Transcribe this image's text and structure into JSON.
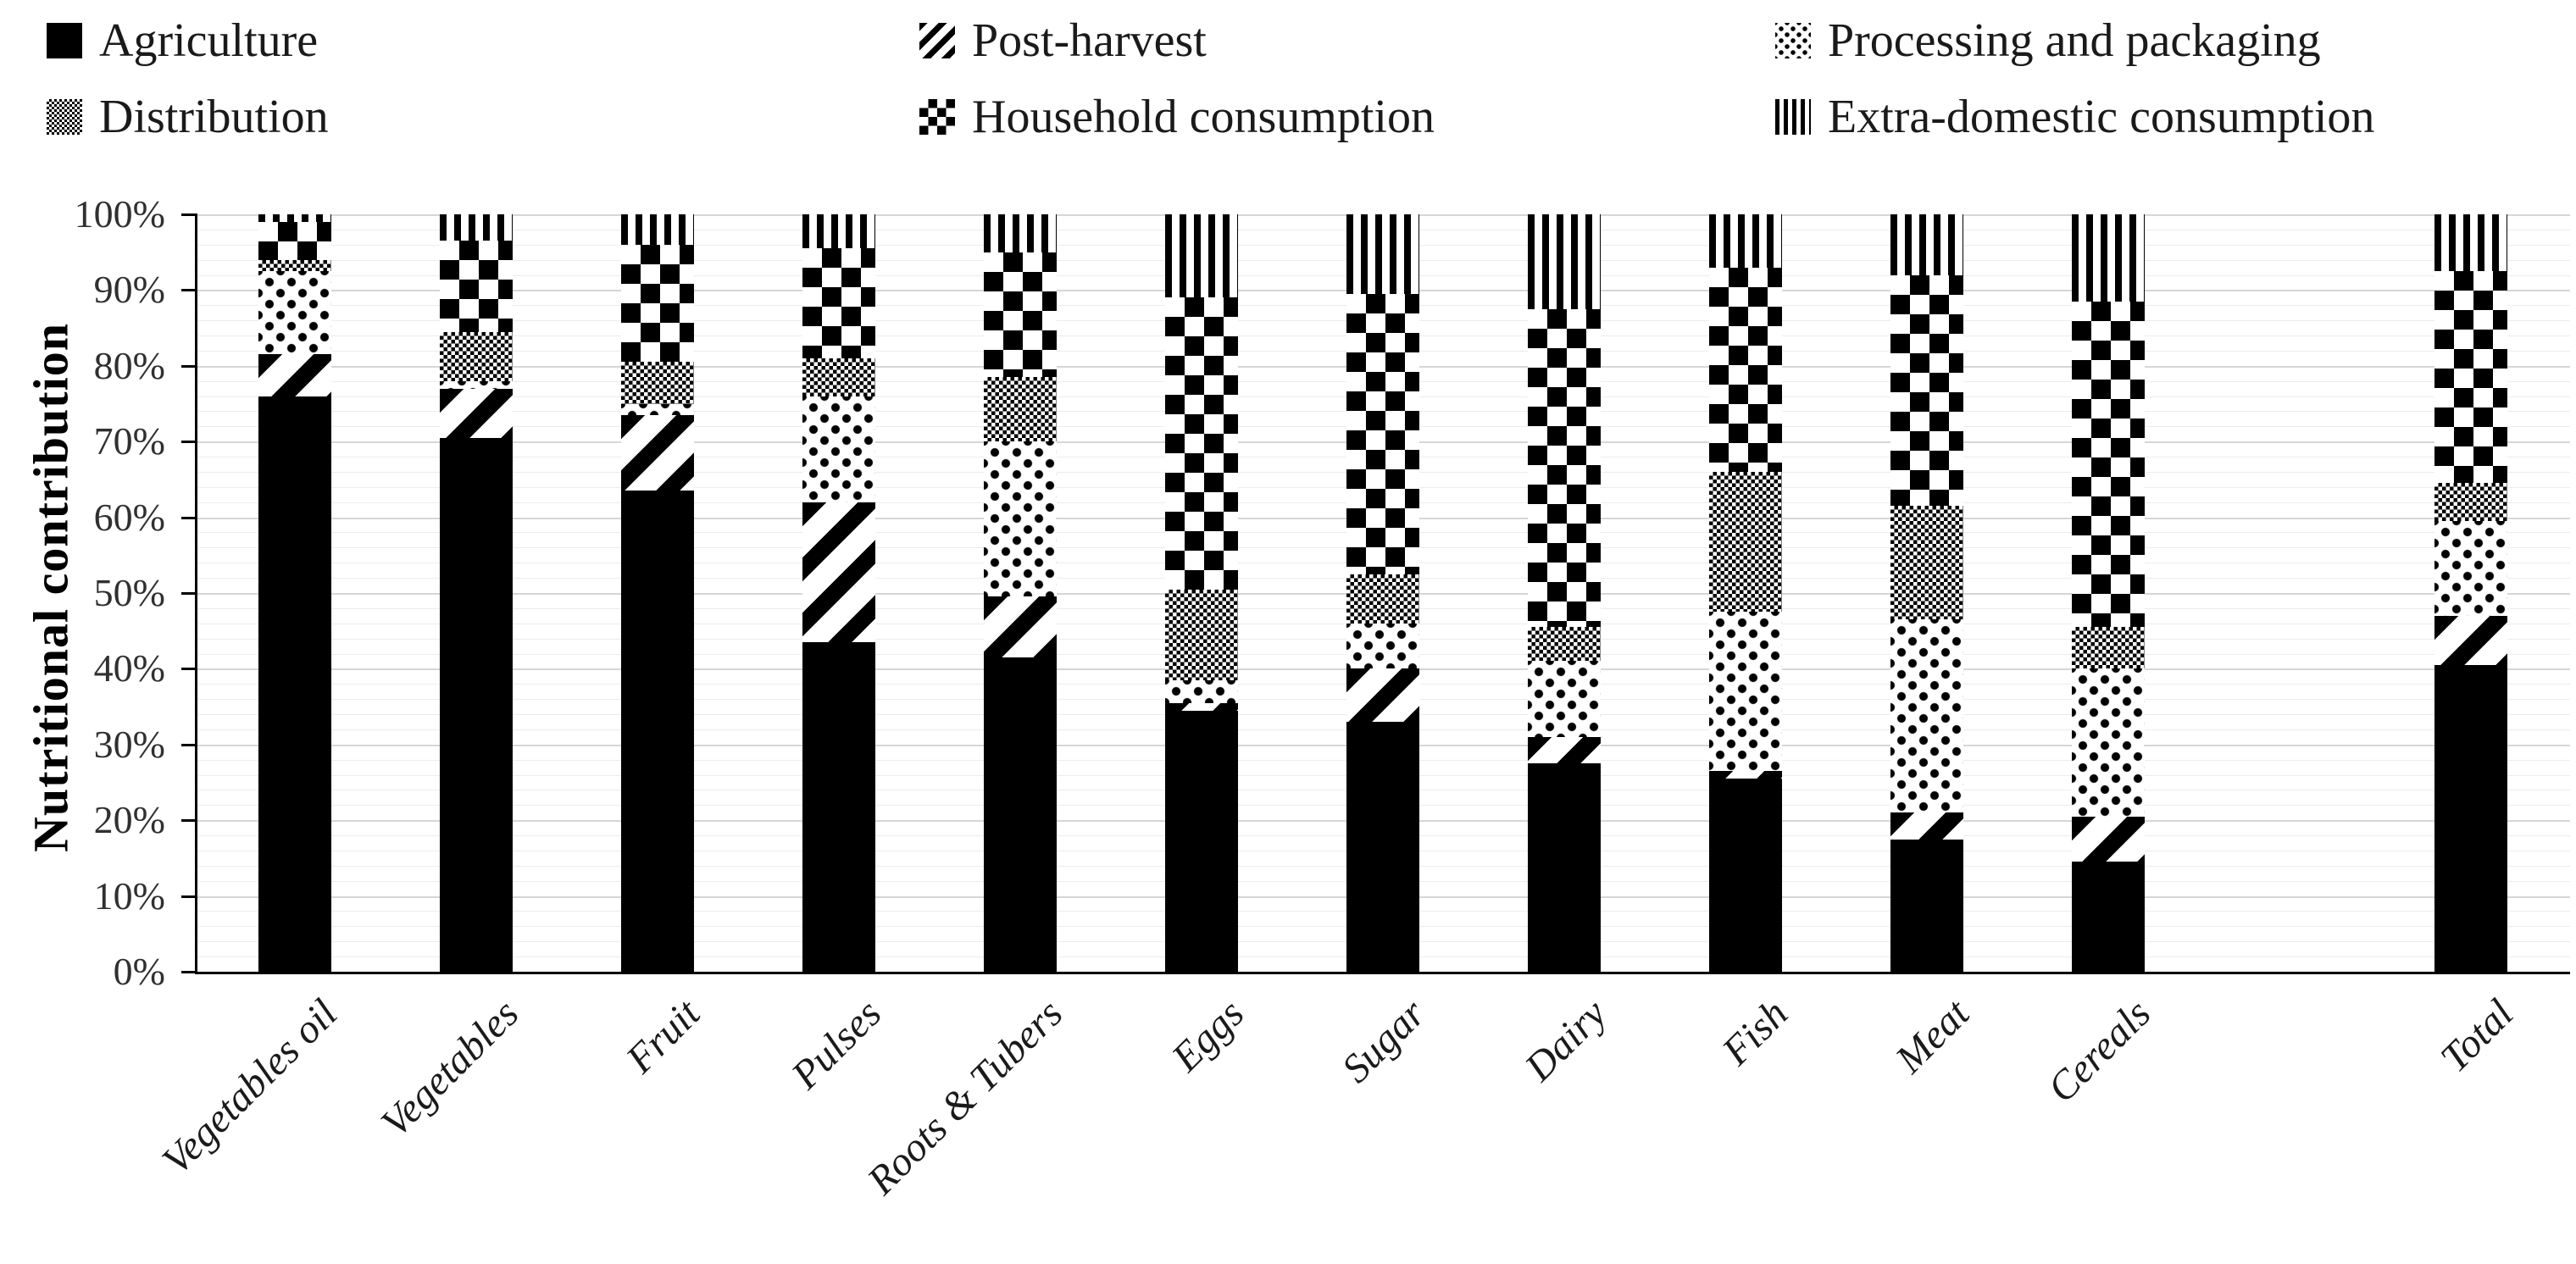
{
  "chart_data": {
    "type": "bar",
    "stacked": true,
    "percent_stacked": true,
    "title": "",
    "xlabel": "",
    "ylabel": "Nutritional contribution",
    "ylim": [
      0,
      100
    ],
    "ytick_labels": [
      "0%",
      "10%",
      "20%",
      "30%",
      "40%",
      "50%",
      "60%",
      "70%",
      "80%",
      "90%",
      "100%"
    ],
    "grid": {
      "minor_step_pct": 2,
      "major_step_pct": 10
    },
    "legend_position": "top",
    "categories": [
      "Vegetables oil",
      "Vegetables",
      "Fruit",
      "Pulses",
      "Roots & Tubers",
      "Eggs",
      "Sugar",
      "Dairy",
      "Fish",
      "Meat",
      "Cereals",
      "Total"
    ],
    "series": [
      {
        "name": "Agriculture",
        "pattern": "solid",
        "values": [
          76,
          70.5,
          63.5,
          43.5,
          41.5,
          34.5,
          33,
          27.5,
          25.5,
          17.5,
          14.5,
          40.5
        ]
      },
      {
        "name": "Post-harvest",
        "pattern": "diagonal-stripes",
        "values": [
          5.5,
          6.5,
          10,
          18.5,
          8,
          1,
          7,
          3.5,
          1,
          3.5,
          6,
          6.5
        ]
      },
      {
        "name": "Processing and packaging",
        "pattern": "sparse-dots",
        "values": [
          11,
          1,
          1.5,
          14,
          20.5,
          3,
          6,
          10,
          21,
          25.5,
          19.5,
          12.5
        ]
      },
      {
        "name": "Distribution",
        "pattern": "dense-dither",
        "values": [
          1.5,
          6.5,
          5.5,
          5,
          8.5,
          12,
          6.5,
          4.5,
          18.5,
          15,
          5.5,
          5
        ]
      },
      {
        "name": "Household consumption",
        "pattern": "checkerboard",
        "values": [
          5,
          12,
          15.5,
          14.5,
          16.5,
          38.5,
          37,
          42,
          27,
          30.5,
          43,
          28
        ]
      },
      {
        "name": "Extra-domestic consumption",
        "pattern": "vertical-stripes",
        "values": [
          1,
          3.5,
          4,
          4.5,
          5,
          11,
          10.5,
          12.5,
          7,
          8,
          11.5,
          7.5
        ]
      }
    ],
    "colors": {
      "foreground": "#000000",
      "background": "#ffffff",
      "gridline_minor": "#ececec",
      "gridline_major": "#d6d6d6"
    }
  }
}
